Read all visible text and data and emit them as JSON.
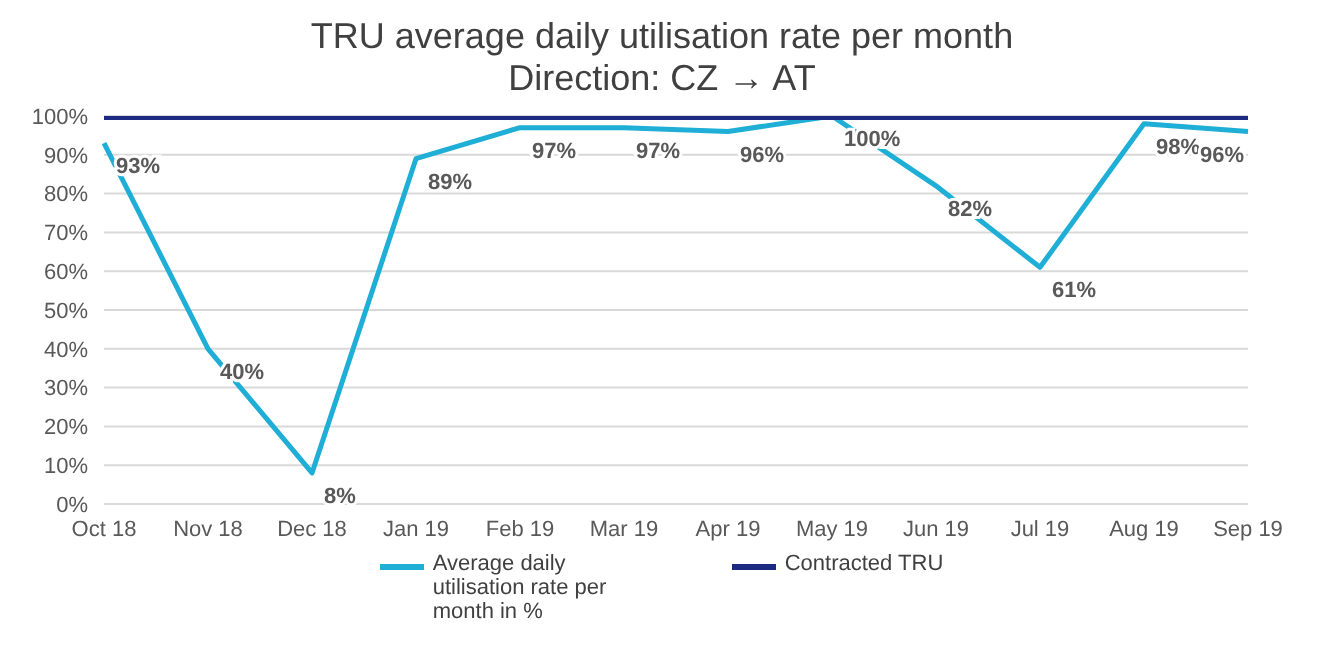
{
  "chart_data": {
    "type": "line",
    "title": "TRU  average daily utilisation rate per month",
    "subtitle": "Direction: CZ → AT",
    "categories": [
      "Oct 18",
      "Nov 18",
      "Dec 18",
      "Jan 19",
      "Feb 19",
      "Mar 19",
      "Apr 19",
      "May 19",
      "Jun 19",
      "Jul 19",
      "Aug 19",
      "Sep 19"
    ],
    "series": [
      {
        "name": "Average daily utilisation rate per month in %",
        "color": "#1eaed6",
        "values": [
          93,
          40,
          8,
          89,
          97,
          97,
          96,
          100,
          82,
          61,
          98,
          96
        ],
        "value_labels": [
          "93%",
          "40%",
          "8%",
          "89%",
          "97%",
          "97%",
          "96%",
          "100%",
          "82%",
          "61%",
          "98%",
          "96%"
        ]
      },
      {
        "name": "Contracted TRU",
        "color": "#1c2a82",
        "values": [
          100,
          100,
          100,
          100,
          100,
          100,
          100,
          100,
          100,
          100,
          100,
          100
        ]
      }
    ],
    "ylim": [
      0,
      100
    ],
    "yticks": [
      {
        "value": 0,
        "label": "0%"
      },
      {
        "value": 10,
        "label": "10%"
      },
      {
        "value": 20,
        "label": "20%"
      },
      {
        "value": 30,
        "label": "30%"
      },
      {
        "value": 40,
        "label": "40%"
      },
      {
        "value": 50,
        "label": "50%"
      },
      {
        "value": 60,
        "label": "60%"
      },
      {
        "value": 70,
        "label": "70%"
      },
      {
        "value": 80,
        "label": "80%"
      },
      {
        "value": 90,
        "label": "90%"
      },
      {
        "value": 100,
        "label": "100%"
      }
    ],
    "grid": "y",
    "legend": "bottom",
    "marker": "none",
    "line_style": "solid"
  }
}
